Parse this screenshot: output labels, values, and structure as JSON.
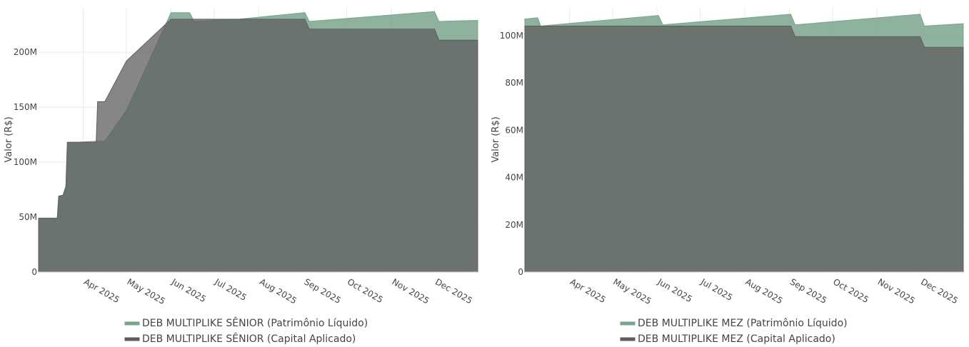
{
  "chart_data": [
    {
      "type": "area",
      "title": "",
      "xlabel": "",
      "ylabel": "Valor (R$)",
      "ylim": [
        0,
        241000000
      ],
      "xlim": [
        "2025-03-01",
        "2025-12-31"
      ],
      "y_ticks": [
        {
          "value": 0,
          "label": "0"
        },
        {
          "value": 50000000,
          "label": "50M"
        },
        {
          "value": 100000000,
          "label": "100M"
        },
        {
          "value": 150000000,
          "label": "150M"
        },
        {
          "value": 200000000,
          "label": "200M"
        }
      ],
      "x_ticks": [
        {
          "date": "2025-04-01",
          "label": "Apr 2025"
        },
        {
          "date": "2025-05-01",
          "label": "May 2025"
        },
        {
          "date": "2025-06-01",
          "label": "Jun 2025"
        },
        {
          "date": "2025-07-01",
          "label": "Jul 2025"
        },
        {
          "date": "2025-08-01",
          "label": "Aug 2025"
        },
        {
          "date": "2025-09-01",
          "label": "Sep 2025"
        },
        {
          "date": "2025-10-01",
          "label": "Oct 2025"
        },
        {
          "date": "2025-11-01",
          "label": "Nov 2025"
        },
        {
          "date": "2025-12-01",
          "label": "Dec 2025"
        }
      ],
      "grid": true,
      "legend_position": "bottom",
      "series": [
        {
          "name": "DEB MULTIPLIKE SÊNIOR (Patrimônio Líquido)",
          "color": "#7aa58c",
          "x": [
            "2025-03-01",
            "2025-03-14",
            "2025-03-15",
            "2025-03-18",
            "2025-03-20",
            "2025-03-21",
            "2025-03-27",
            "2025-04-10",
            "2025-04-16",
            "2025-05-01",
            "2025-06-01",
            "2025-06-14",
            "2025-06-17",
            "2025-07-18",
            "2025-09-02",
            "2025-09-05",
            "2025-12-01",
            "2025-12-04",
            "2025-12-31"
          ],
          "y": [
            49000000,
            49000000,
            69000000,
            70000000,
            78000000,
            118000000,
            118000000,
            119000000,
            119000000,
            147000000,
            236000000,
            236000000,
            228000000,
            230000000,
            236000000,
            228000000,
            237000000,
            228000000,
            229000000
          ]
        },
        {
          "name": "DEB MULTIPLIKE SÊNIOR (Capital Aplicado)",
          "color": "#5e5e5e",
          "x": [
            "2025-03-01",
            "2025-03-14",
            "2025-03-15",
            "2025-03-18",
            "2025-03-20",
            "2025-03-21",
            "2025-04-10",
            "2025-04-11",
            "2025-04-16",
            "2025-05-01",
            "2025-06-01",
            "2025-06-14",
            "2025-07-01",
            "2025-09-02",
            "2025-09-05",
            "2025-12-01",
            "2025-12-04",
            "2025-12-31"
          ],
          "y": [
            49000000,
            49000000,
            69000000,
            70000000,
            78000000,
            118000000,
            118000000,
            155000000,
            155000000,
            192000000,
            230000000,
            230000000,
            230000000,
            230000000,
            221000000,
            221000000,
            211000000,
            211000000
          ]
        }
      ]
    },
    {
      "type": "area",
      "title": "",
      "xlabel": "",
      "ylabel": "Valor (R$)",
      "ylim": [
        0,
        112000000
      ],
      "xlim": [
        "2025-03-01",
        "2025-12-31"
      ],
      "y_ticks": [
        {
          "value": 0,
          "label": "0"
        },
        {
          "value": 20000000,
          "label": "20M"
        },
        {
          "value": 40000000,
          "label": "40M"
        },
        {
          "value": 60000000,
          "label": "60M"
        },
        {
          "value": 80000000,
          "label": "80M"
        },
        {
          "value": 100000000,
          "label": "100M"
        }
      ],
      "x_ticks": [
        {
          "date": "2025-04-01",
          "label": "Apr 2025"
        },
        {
          "date": "2025-05-01",
          "label": "May 2025"
        },
        {
          "date": "2025-06-01",
          "label": "Jun 2025"
        },
        {
          "date": "2025-07-01",
          "label": "Jul 2025"
        },
        {
          "date": "2025-08-01",
          "label": "Aug 2025"
        },
        {
          "date": "2025-09-01",
          "label": "Sep 2025"
        },
        {
          "date": "2025-10-01",
          "label": "Oct 2025"
        },
        {
          "date": "2025-11-01",
          "label": "Nov 2025"
        },
        {
          "date": "2025-12-01",
          "label": "Dec 2025"
        }
      ],
      "grid": true,
      "legend_position": "bottom",
      "series": [
        {
          "name": "DEB MULTIPLIKE MEZ (Patrimônio Líquido)",
          "color": "#7aa58c",
          "x": [
            "2025-03-01",
            "2025-03-10",
            "2025-03-12",
            "2025-06-02",
            "2025-06-05",
            "2025-09-02",
            "2025-09-05",
            "2025-12-01",
            "2025-12-04",
            "2025-12-31"
          ],
          "y": [
            107000000,
            107500000,
            104000000,
            108500000,
            104500000,
            109000000,
            104500000,
            109000000,
            104000000,
            105000000
          ]
        },
        {
          "name": "DEB MULTIPLIKE MEZ (Capital Aplicado)",
          "color": "#5e5e5e",
          "x": [
            "2025-03-01",
            "2025-03-10",
            "2025-09-02",
            "2025-09-05",
            "2025-12-01",
            "2025-12-04",
            "2025-12-31"
          ],
          "y": [
            104000000,
            104000000,
            104000000,
            99500000,
            99500000,
            95000000,
            95000000
          ]
        }
      ]
    }
  ]
}
